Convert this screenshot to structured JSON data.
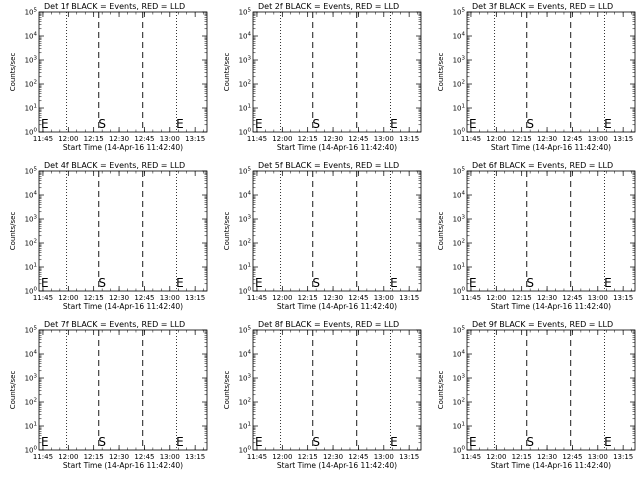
{
  "chart_data": [
    {
      "type": "line",
      "title": "Det 1f BLACK = Events, RED = LLD",
      "xlabel": "Start Time (14-Apr-16 11:42:40)",
      "ylabel": "Counts/sec",
      "x_tick_labels": [
        "11:45",
        "12:00",
        "12:15",
        "12:30",
        "12:45",
        "13:00",
        "13:15"
      ],
      "y_tick_labels": [
        "10^0",
        "10^1",
        "10^2",
        "10^3",
        "10^4",
        "10^5"
      ],
      "y_scale": "log",
      "ylim": [
        1,
        100000
      ],
      "series": [],
      "annotations": [
        {
          "text": "E",
          "x": "11:42:40"
        },
        {
          "text": "S",
          "x": "12:20"
        },
        {
          "text": "E",
          "x": "13:06"
        }
      ],
      "dotted_vlines": [
        "11:59",
        "13:04"
      ],
      "dashed_vlines": [
        "12:18",
        "12:44"
      ]
    },
    {
      "type": "line",
      "title": "Det 2f BLACK = Events, RED = LLD",
      "xlabel": "Start Time (14-Apr-16 11:42:40)",
      "ylabel": "Counts/sec",
      "x_tick_labels": [
        "11:45",
        "12:00",
        "12:15",
        "12:30",
        "12:45",
        "13:00",
        "13:15"
      ],
      "y_tick_labels": [
        "10^0",
        "10^1",
        "10^2",
        "10^3",
        "10^4",
        "10^5"
      ],
      "y_scale": "log",
      "ylim": [
        1,
        100000
      ],
      "series": [],
      "annotations": [
        {
          "text": "E",
          "x": "11:42:40"
        },
        {
          "text": "S",
          "x": "12:20"
        },
        {
          "text": "E",
          "x": "13:06"
        }
      ],
      "dotted_vlines": [
        "11:59",
        "13:04"
      ],
      "dashed_vlines": [
        "12:18",
        "12:44"
      ]
    },
    {
      "type": "line",
      "title": "Det 3f BLACK = Events, RED = LLD",
      "xlabel": "Start Time (14-Apr-16 11:42:40)",
      "ylabel": "Counts/sec",
      "x_tick_labels": [
        "11:45",
        "12:00",
        "12:15",
        "12:30",
        "12:45",
        "13:00",
        "13:15"
      ],
      "y_tick_labels": [
        "10^0",
        "10^1",
        "10^2",
        "10^3",
        "10^4",
        "10^5"
      ],
      "y_scale": "log",
      "ylim": [
        1,
        100000
      ],
      "series": [],
      "annotations": [
        {
          "text": "E",
          "x": "11:42:40"
        },
        {
          "text": "S",
          "x": "12:20"
        },
        {
          "text": "E",
          "x": "13:06"
        }
      ],
      "dotted_vlines": [
        "11:59",
        "13:04"
      ],
      "dashed_vlines": [
        "12:18",
        "12:44"
      ]
    },
    {
      "type": "line",
      "title": "Det 4f BLACK = Events, RED = LLD",
      "xlabel": "Start Time (14-Apr-16 11:42:40)",
      "ylabel": "Counts/sec",
      "x_tick_labels": [
        "11:45",
        "12:00",
        "12:15",
        "12:30",
        "12:45",
        "13:00",
        "13:15"
      ],
      "y_tick_labels": [
        "10^0",
        "10^1",
        "10^2",
        "10^3",
        "10^4",
        "10^5"
      ],
      "y_scale": "log",
      "ylim": [
        1,
        100000
      ],
      "series": [],
      "annotations": [
        {
          "text": "E",
          "x": "11:42:40"
        },
        {
          "text": "S",
          "x": "12:20"
        },
        {
          "text": "E",
          "x": "13:06"
        }
      ],
      "dotted_vlines": [
        "11:59",
        "13:04"
      ],
      "dashed_vlines": [
        "12:18",
        "12:44"
      ]
    },
    {
      "type": "line",
      "title": "Det 5f BLACK = Events, RED = LLD",
      "xlabel": "Start Time (14-Apr-16 11:42:40)",
      "ylabel": "Counts/sec",
      "x_tick_labels": [
        "11:45",
        "12:00",
        "12:15",
        "12:30",
        "12:45",
        "13:00",
        "13:15"
      ],
      "y_tick_labels": [
        "10^0",
        "10^1",
        "10^2",
        "10^3",
        "10^4",
        "10^5"
      ],
      "y_scale": "log",
      "ylim": [
        1,
        100000
      ],
      "series": [],
      "annotations": [
        {
          "text": "E",
          "x": "11:42:40"
        },
        {
          "text": "S",
          "x": "12:20"
        },
        {
          "text": "E",
          "x": "13:06"
        }
      ],
      "dotted_vlines": [
        "11:59",
        "13:04"
      ],
      "dashed_vlines": [
        "12:18",
        "12:44"
      ]
    },
    {
      "type": "line",
      "title": "Det 6f BLACK = Events, RED = LLD",
      "xlabel": "Start Time (14-Apr-16 11:42:40)",
      "ylabel": "Counts/sec",
      "x_tick_labels": [
        "11:45",
        "12:00",
        "12:15",
        "12:30",
        "12:45",
        "13:00",
        "13:15"
      ],
      "y_tick_labels": [
        "10^0",
        "10^1",
        "10^2",
        "10^3",
        "10^4",
        "10^5"
      ],
      "y_scale": "log",
      "ylim": [
        1,
        100000
      ],
      "series": [],
      "annotations": [
        {
          "text": "E",
          "x": "11:42:40"
        },
        {
          "text": "S",
          "x": "12:20"
        },
        {
          "text": "E",
          "x": "13:06"
        }
      ],
      "dotted_vlines": [
        "11:59",
        "13:04"
      ],
      "dashed_vlines": [
        "12:18",
        "12:44"
      ]
    },
    {
      "type": "line",
      "title": "Det 7f BLACK = Events, RED = LLD",
      "xlabel": "Start Time (14-Apr-16 11:42:40)",
      "ylabel": "Counts/sec",
      "x_tick_labels": [
        "11:45",
        "12:00",
        "12:15",
        "12:30",
        "12:45",
        "13:00",
        "13:15"
      ],
      "y_tick_labels": [
        "10^0",
        "10^1",
        "10^2",
        "10^3",
        "10^4",
        "10^5"
      ],
      "y_scale": "log",
      "ylim": [
        1,
        100000
      ],
      "series": [],
      "annotations": [
        {
          "text": "E",
          "x": "11:42:40"
        },
        {
          "text": "S",
          "x": "12:20"
        },
        {
          "text": "E",
          "x": "13:06"
        }
      ],
      "dotted_vlines": [
        "11:59",
        "13:04"
      ],
      "dashed_vlines": [
        "12:18",
        "12:44"
      ]
    },
    {
      "type": "line",
      "title": "Det 8f BLACK = Events, RED = LLD",
      "xlabel": "Start Time (14-Apr-16 11:42:40)",
      "ylabel": "Counts/sec",
      "x_tick_labels": [
        "11:45",
        "12:00",
        "12:15",
        "12:30",
        "12:45",
        "13:00",
        "13:15"
      ],
      "y_tick_labels": [
        "10^0",
        "10^1",
        "10^2",
        "10^3",
        "10^4",
        "10^5"
      ],
      "y_scale": "log",
      "ylim": [
        1,
        100000
      ],
      "series": [],
      "annotations": [
        {
          "text": "E",
          "x": "11:42:40"
        },
        {
          "text": "S",
          "x": "12:20"
        },
        {
          "text": "E",
          "x": "13:06"
        }
      ],
      "dotted_vlines": [
        "11:59",
        "13:04"
      ],
      "dashed_vlines": [
        "12:18",
        "12:44"
      ]
    },
    {
      "type": "line",
      "title": "Det 9f BLACK = Events, RED = LLD",
      "xlabel": "Start Time (14-Apr-16 11:42:40)",
      "ylabel": "Counts/sec",
      "x_tick_labels": [
        "11:45",
        "12:00",
        "12:15",
        "12:30",
        "12:45",
        "13:00",
        "13:15"
      ],
      "y_tick_labels": [
        "10^0",
        "10^1",
        "10^2",
        "10^3",
        "10^4",
        "10^5"
      ],
      "y_scale": "log",
      "ylim": [
        1,
        100000
      ],
      "series": [],
      "annotations": [
        {
          "text": "E",
          "x": "11:42:40"
        },
        {
          "text": "S",
          "x": "12:20"
        },
        {
          "text": "E",
          "x": "13:06"
        }
      ],
      "dotted_vlines": [
        "11:59",
        "13:04"
      ],
      "dashed_vlines": [
        "12:18",
        "12:44"
      ]
    }
  ]
}
